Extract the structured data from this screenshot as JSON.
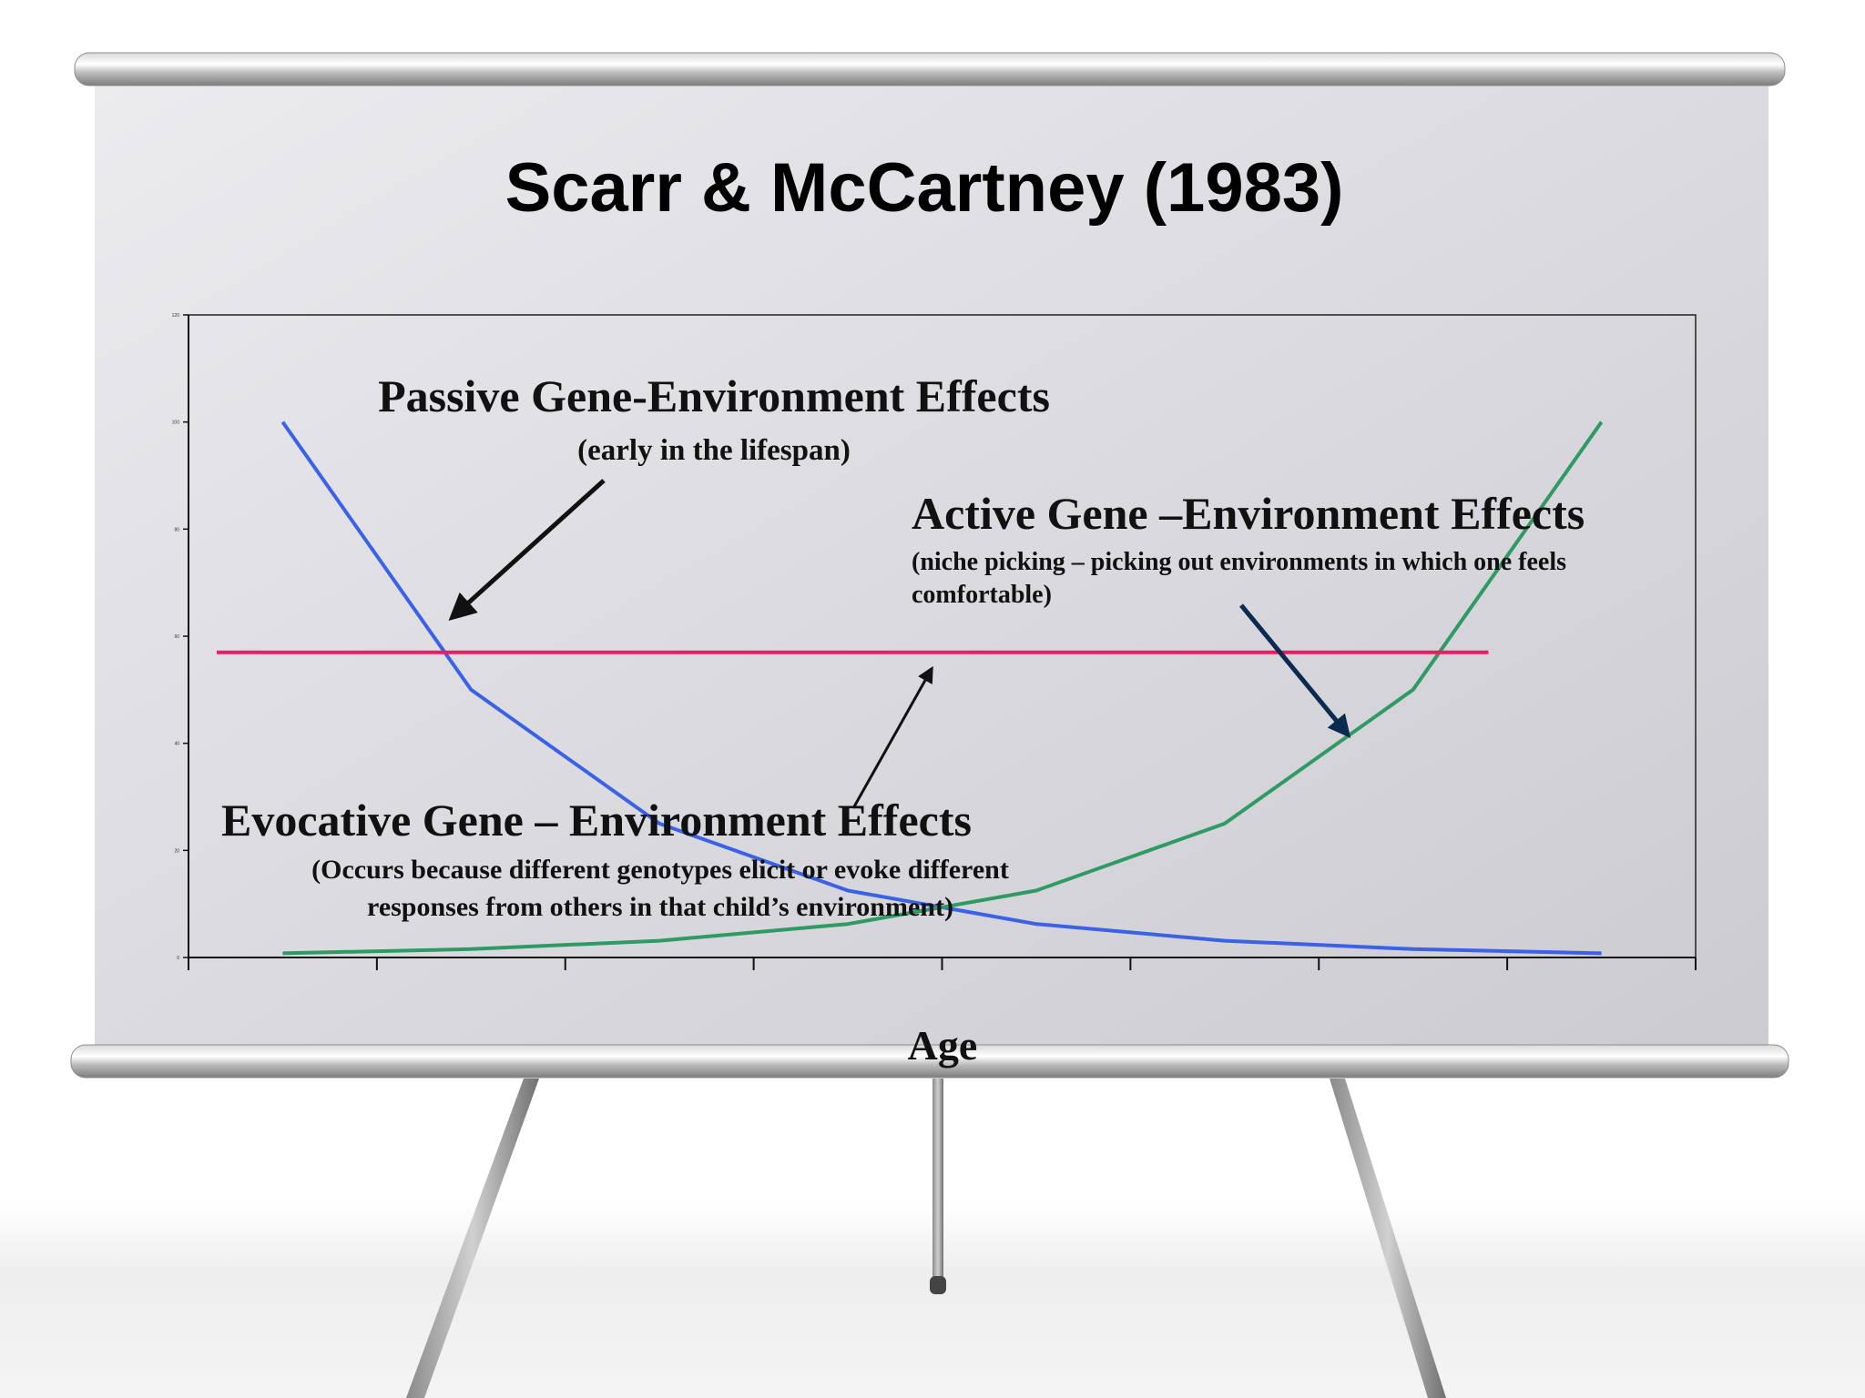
{
  "slide": {
    "title": "Scarr & McCartney (1983)"
  },
  "annotations": {
    "passive": {
      "heading": "Passive Gene-Environment Effects",
      "detail": "(early in the lifespan)"
    },
    "active": {
      "heading": "Active Gene –Environment Effects",
      "detail_line1": "(niche picking – picking out environments in which one feels",
      "detail_line2": "comfortable)"
    },
    "evocative": {
      "heading": "Evocative Gene – Environment Effects",
      "detail_line1": "(Occurs because different genotypes elicit or evoke different",
      "detail_line2": "responses from others in that child’s environment)"
    }
  },
  "chart_data": {
    "type": "line",
    "xlabel": "Age",
    "ylabel": "",
    "ylim": [
      0,
      120
    ],
    "y_ticks": [
      "0",
      "20",
      "40",
      "60",
      "80",
      "100",
      "120"
    ],
    "x_categories": 8,
    "grid": false,
    "legend": "none",
    "series": [
      {
        "color": "#3b62e6",
        "x": [
          0.5,
          1.5,
          2.5,
          3.5,
          4.5,
          5.5,
          6.5,
          7.5
        ],
        "y": [
          100,
          50,
          25,
          12.5,
          6.25,
          3.125,
          1.56,
          0.78
        ]
      },
      {
        "color": "#2f9a63",
        "x": [
          0.5,
          1.5,
          2.5,
          3.5,
          4.5,
          5.5,
          6.5,
          7.5
        ],
        "y": [
          0.78,
          1.56,
          3.125,
          6.25,
          12.5,
          25,
          50,
          100
        ]
      },
      {
        "color": "#f01a62",
        "x": [
          0.15,
          6.9
        ],
        "y": [
          57,
          57
        ]
      }
    ]
  }
}
